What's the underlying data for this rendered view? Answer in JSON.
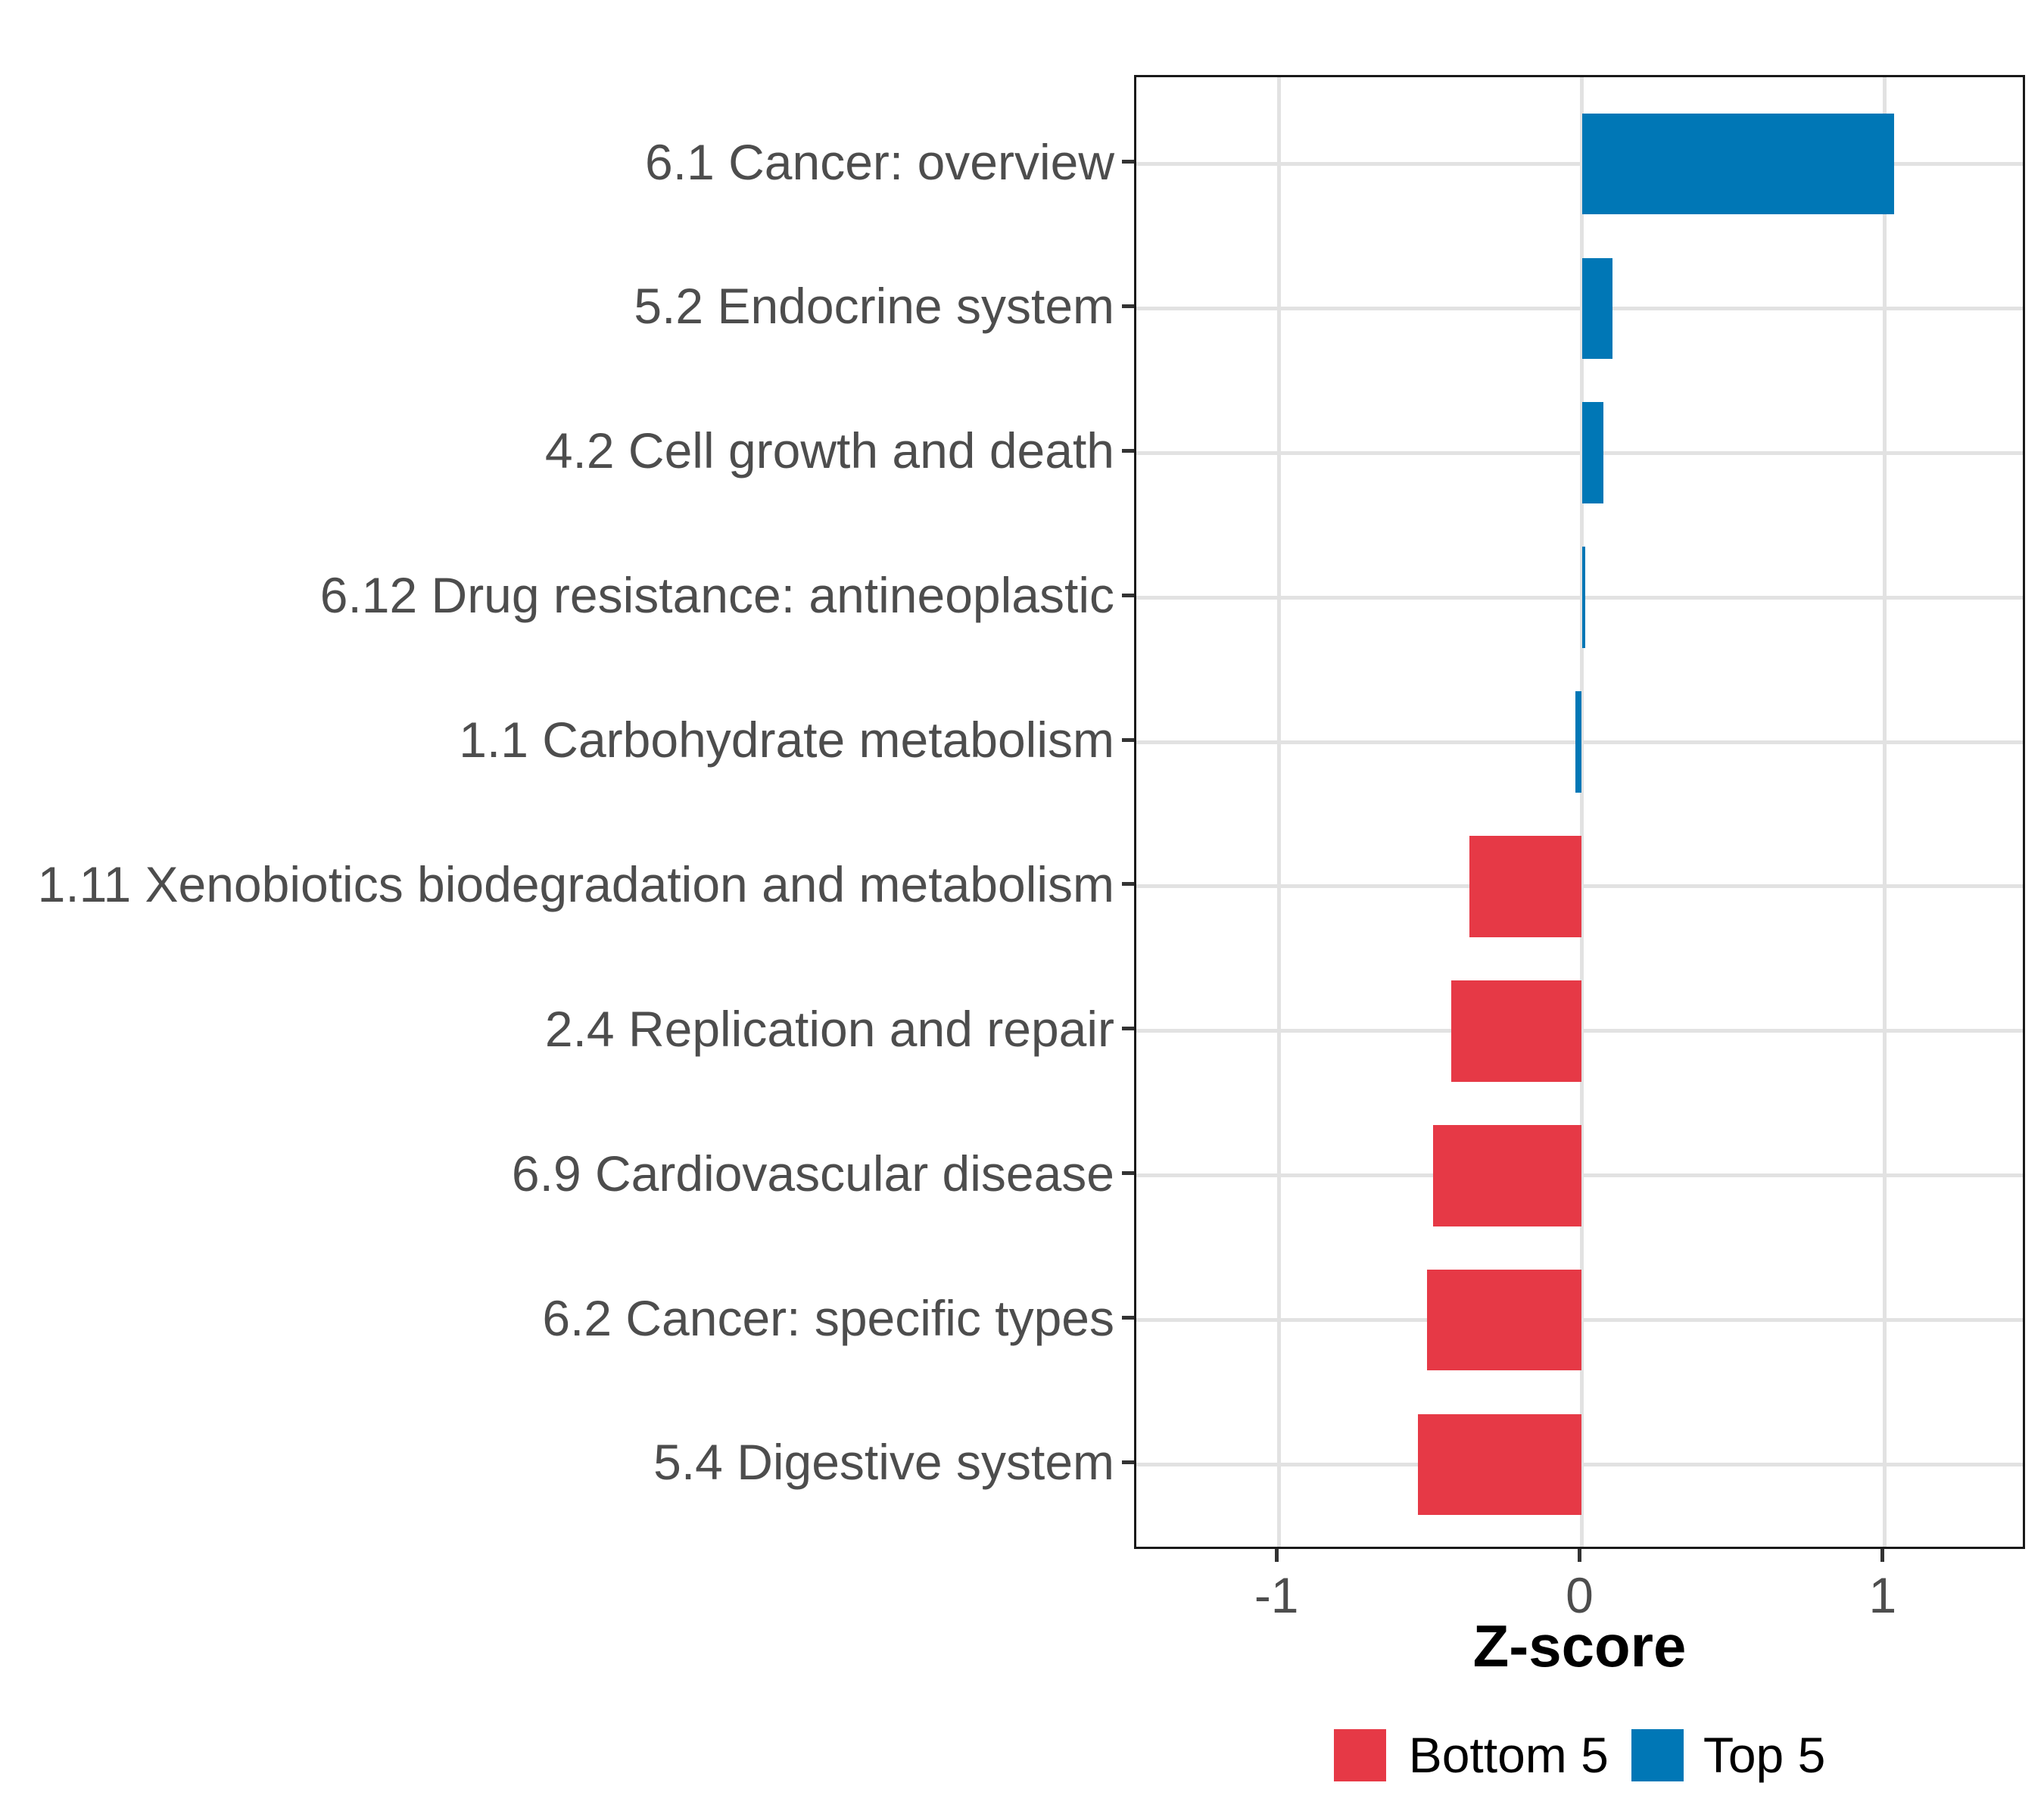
{
  "figure": {
    "background": "#ffffff"
  },
  "chart_data": {
    "type": "bar",
    "orientation": "horizontal",
    "title": "",
    "xlabel": "Z-score",
    "ylabel": "",
    "categories": [
      "6.1 Cancer: overview",
      "5.2 Endocrine system",
      "4.2 Cell growth and death",
      "6.12 Drug resistance: antineoplastic",
      "1.1 Carbohydrate metabolism",
      "1.11 Xenobiotics biodegradation and metabolism",
      "2.4 Replication and repair",
      "6.9 Cardiovascular disease",
      "6.2 Cancer: specific types",
      "5.4 Digestive system"
    ],
    "values": [
      1.03,
      0.1,
      0.07,
      0.01,
      -0.02,
      -0.37,
      -0.43,
      -0.49,
      -0.51,
      -0.54
    ],
    "groups": [
      "Top 5",
      "Top 5",
      "Top 5",
      "Top 5",
      "Top 5",
      "Bottom 5",
      "Bottom 5",
      "Bottom 5",
      "Bottom 5",
      "Bottom 5"
    ],
    "colors": {
      "Top 5": "#0077b6",
      "Bottom 5": "#e63946"
    },
    "xlim": [
      -1.47,
      1.47
    ],
    "x_ticks": [
      -1,
      0,
      1
    ],
    "x_tick_labels": [
      "-1",
      "0",
      "1"
    ],
    "grid": "major",
    "bar_width_fraction": 0.7,
    "axis_text_color": "#4d4d4d",
    "gridline_color": "#e2e2e2",
    "panel_border_color": "#1a1a1a",
    "legend": {
      "position": "bottom",
      "entries": [
        {
          "label": "Bottom 5",
          "color": "#e63946"
        },
        {
          "label": "Top 5",
          "color": "#0077b6"
        }
      ]
    }
  }
}
